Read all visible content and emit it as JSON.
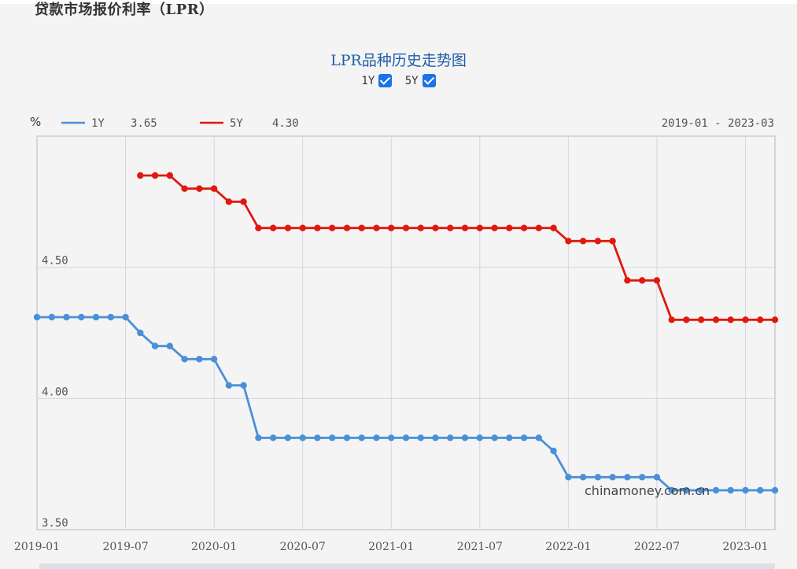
{
  "page": {
    "title": "贷款市场报价利率（LPR）"
  },
  "chart_header": {
    "title": "LPR品种历史走势图",
    "toggles": [
      {
        "label": "1Y",
        "checked": true
      },
      {
        "label": "5Y",
        "checked": true
      }
    ],
    "unit": "%",
    "legend": [
      {
        "name": "1Y",
        "latest": "3.65",
        "color": "#4a90d9"
      },
      {
        "name": "5Y",
        "latest": "4.30",
        "color": "#e0190f"
      }
    ],
    "date_range": "2019-01 - 2023-03",
    "watermark": "chinamoney.com.cn"
  },
  "chart_data": {
    "type": "line",
    "x_start": "2019-01",
    "x": [
      "2019-01",
      "2019-02",
      "2019-03",
      "2019-04",
      "2019-05",
      "2019-06",
      "2019-07",
      "2019-08",
      "2019-09",
      "2019-10",
      "2019-11",
      "2019-12",
      "2020-01",
      "2020-02",
      "2020-03",
      "2020-04",
      "2020-05",
      "2020-06",
      "2020-07",
      "2020-08",
      "2020-09",
      "2020-10",
      "2020-11",
      "2020-12",
      "2021-01",
      "2021-02",
      "2021-03",
      "2021-04",
      "2021-05",
      "2021-06",
      "2021-07",
      "2021-08",
      "2021-09",
      "2021-10",
      "2021-11",
      "2021-12",
      "2022-01",
      "2022-02",
      "2022-03",
      "2022-04",
      "2022-05",
      "2022-06",
      "2022-07",
      "2022-08",
      "2022-09",
      "2022-10",
      "2022-11",
      "2022-12",
      "2023-01",
      "2023-02",
      "2023-03"
    ],
    "series": [
      {
        "name": "1Y",
        "color": "#4a90d9",
        "values": [
          4.31,
          4.31,
          4.31,
          4.31,
          4.31,
          4.31,
          4.31,
          4.25,
          4.2,
          4.2,
          4.15,
          4.15,
          4.15,
          4.05,
          4.05,
          3.85,
          3.85,
          3.85,
          3.85,
          3.85,
          3.85,
          3.85,
          3.85,
          3.85,
          3.85,
          3.85,
          3.85,
          3.85,
          3.85,
          3.85,
          3.85,
          3.85,
          3.85,
          3.85,
          3.85,
          3.8,
          3.7,
          3.7,
          3.7,
          3.7,
          3.7,
          3.7,
          3.7,
          3.65,
          3.65,
          3.65,
          3.65,
          3.65,
          3.65,
          3.65,
          3.65
        ]
      },
      {
        "name": "5Y",
        "color": "#e0190f",
        "values": [
          null,
          null,
          null,
          null,
          null,
          null,
          null,
          4.85,
          4.85,
          4.85,
          4.8,
          4.8,
          4.8,
          4.75,
          4.75,
          4.65,
          4.65,
          4.65,
          4.65,
          4.65,
          4.65,
          4.65,
          4.65,
          4.65,
          4.65,
          4.65,
          4.65,
          4.65,
          4.65,
          4.65,
          4.65,
          4.65,
          4.65,
          4.65,
          4.65,
          4.65,
          4.6,
          4.6,
          4.6,
          4.6,
          4.45,
          4.45,
          4.45,
          4.3,
          4.3,
          4.3,
          4.3,
          4.3,
          4.3,
          4.3,
          4.3
        ]
      }
    ],
    "y_ticks": [
      "3.50",
      "4.00",
      "4.50"
    ],
    "x_tick_labels": [
      "2019-01",
      "2019-07",
      "2020-01",
      "2020-07",
      "2021-01",
      "2021-07",
      "2022-01",
      "2022-07",
      "2023-01"
    ],
    "ylim": [
      3.5,
      5.0
    ],
    "grid": true
  }
}
